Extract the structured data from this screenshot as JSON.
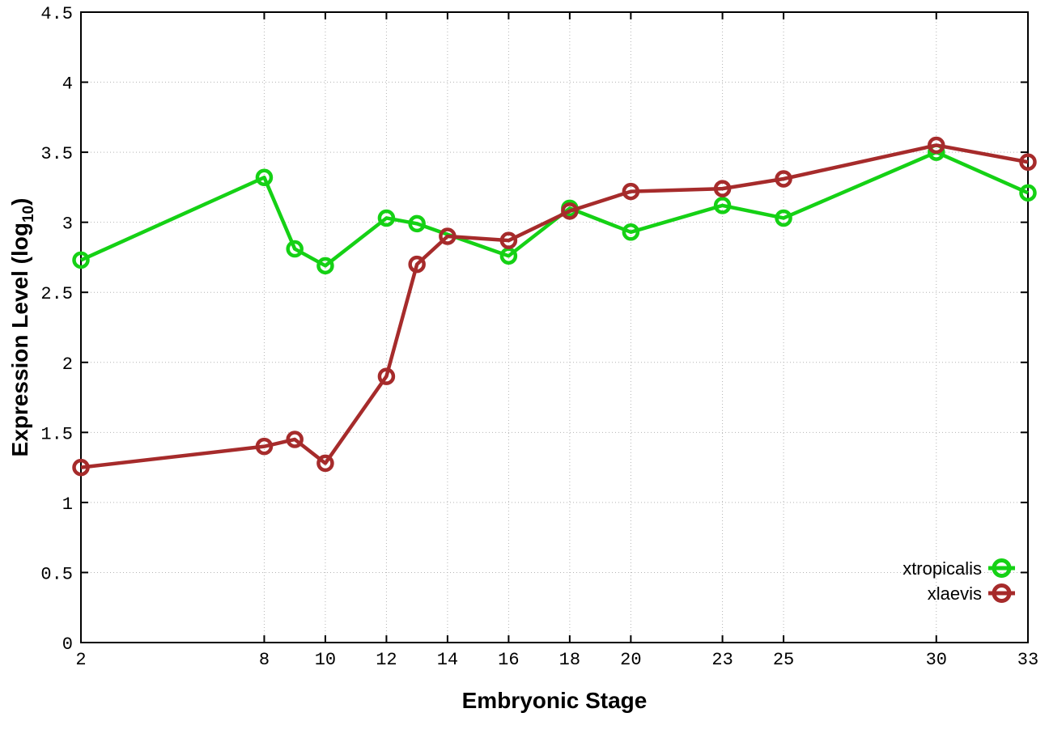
{
  "chart_data": {
    "type": "line",
    "title": "",
    "xlabel": "Embryonic Stage",
    "ylabel": "Expression Level (log10)",
    "ylabel_parts": {
      "base": "Expression Level (log",
      "sub": "10",
      "close": ")"
    },
    "xlim": [
      2,
      33
    ],
    "ylim": [
      0,
      4.5
    ],
    "xticks": [
      2,
      8,
      10,
      12,
      14,
      16,
      18,
      20,
      23,
      25,
      30,
      33
    ],
    "xtick_labels": [
      "2",
      "8",
      "10",
      "12",
      "14",
      "16",
      "18",
      "20",
      "23",
      "25",
      "30",
      "33"
    ],
    "yticks": [
      0,
      0.5,
      1,
      1.5,
      2,
      2.5,
      3,
      3.5,
      4,
      4.5
    ],
    "ytick_labels": [
      "0",
      "0.5",
      "1",
      "1.5",
      "2",
      "2.5",
      "3",
      "3.5",
      "4",
      "4.5"
    ],
    "grid": true,
    "grid_color": "#b4b4b4",
    "border_color": "#000000",
    "legend_position": "bottom-right",
    "marker": "open-circle",
    "series": [
      {
        "name": "xtropicalis",
        "color": "#15d115",
        "x": [
          2,
          8,
          9,
          10,
          12,
          13,
          16,
          18,
          20,
          23,
          25,
          30,
          33
        ],
        "y": [
          2.73,
          3.32,
          2.81,
          2.69,
          3.03,
          2.99,
          2.76,
          3.1,
          2.93,
          3.12,
          3.03,
          3.5,
          3.21
        ]
      },
      {
        "name": "xlaevis",
        "color": "#a62b2b",
        "x": [
          2,
          8,
          9,
          10,
          12,
          13,
          14,
          16,
          18,
          20,
          23,
          25,
          30,
          33
        ],
        "y": [
          1.25,
          1.4,
          1.45,
          1.28,
          1.9,
          2.7,
          2.9,
          2.87,
          3.08,
          3.22,
          3.24,
          3.31,
          3.55,
          3.43
        ]
      }
    ]
  }
}
